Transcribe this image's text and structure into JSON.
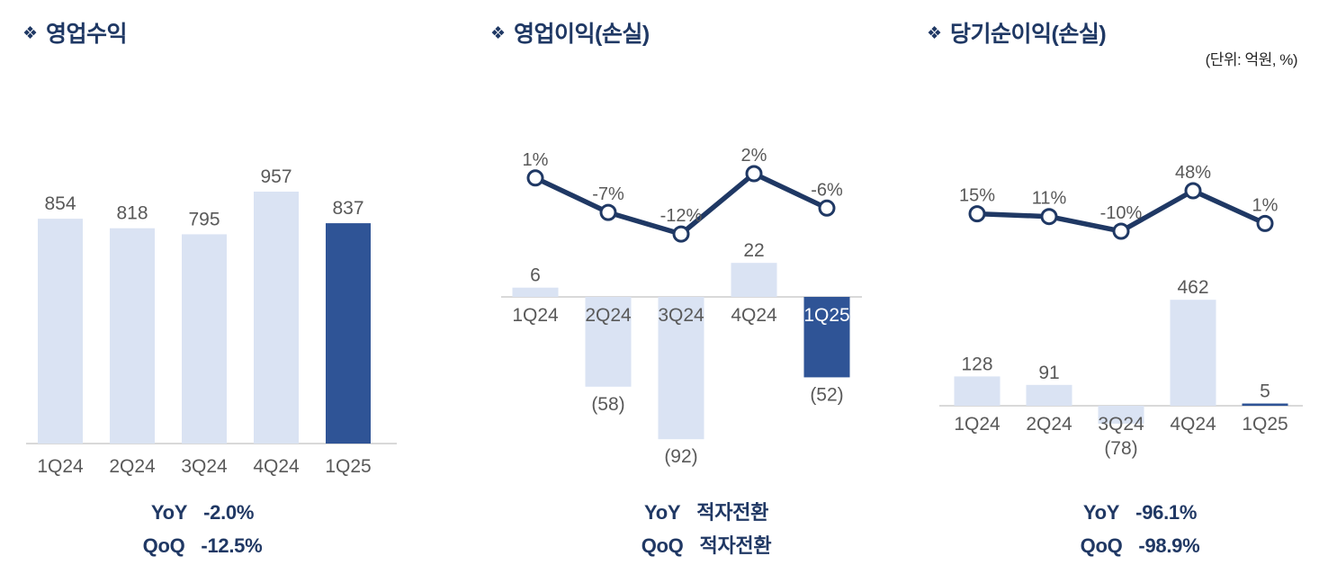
{
  "unit_label": "(단위: 억원, %)",
  "bullet_icon": "❖",
  "colors": {
    "title": "#1F3864",
    "bar_light": "#DAE3F3",
    "bar_dark": "#2F5496",
    "line": "#1F3864",
    "marker_fill": "#FFFFFF",
    "label_gray": "#595959",
    "axis": "#D9D9D9",
    "footer_text": "#203864",
    "category_on_dark": "#FFFFFF"
  },
  "chart_data": [
    {
      "id": "operating-revenue",
      "type": "bar",
      "title": "영업수익",
      "categories": [
        "1Q24",
        "2Q24",
        "3Q24",
        "4Q24",
        "1Q25"
      ],
      "highlight_index": 4,
      "ylim": [
        0,
        980
      ],
      "series": [
        {
          "name": "amount",
          "type": "bar",
          "values": [
            854,
            818,
            795,
            957,
            837
          ],
          "labels": [
            "854",
            "818",
            "795",
            "957",
            "837"
          ]
        }
      ],
      "footer": [
        {
          "label": "YoY",
          "value": "-2.0%"
        },
        {
          "label": "QoQ",
          "value": "-12.5%"
        }
      ]
    },
    {
      "id": "operating-profit-loss",
      "type": "bar+line",
      "title": "영업이익(손실)",
      "categories": [
        "1Q24",
        "2Q24",
        "3Q24",
        "4Q24",
        "1Q25"
      ],
      "highlight_index": 4,
      "series": [
        {
          "name": "amount",
          "type": "bar",
          "values": [
            6,
            -58,
            -92,
            22,
            -52
          ],
          "labels": [
            "6",
            "(58)",
            "(92)",
            "22",
            "(52)"
          ]
        },
        {
          "name": "growth-rate",
          "type": "line",
          "values": [
            1,
            -7,
            -12,
            2,
            -6
          ],
          "labels": [
            "1%",
            "-7%",
            "-12%",
            "2%",
            "-6%"
          ]
        }
      ],
      "footer": [
        {
          "label": "YoY",
          "value": "적자전환"
        },
        {
          "label": "QoQ",
          "value": "적자전환"
        }
      ]
    },
    {
      "id": "net-profit-loss",
      "type": "bar+line",
      "title": "당기순이익(손실)",
      "categories": [
        "1Q24",
        "2Q24",
        "3Q24",
        "4Q24",
        "1Q25"
      ],
      "highlight_index": 4,
      "series": [
        {
          "name": "amount",
          "type": "bar",
          "values": [
            128,
            91,
            -78,
            462,
            5
          ],
          "labels": [
            "128",
            "91",
            "(78)",
            "462",
            "5"
          ]
        },
        {
          "name": "growth-rate",
          "type": "line",
          "values": [
            15,
            11,
            -10,
            48,
            1
          ],
          "labels": [
            "15%",
            "11%",
            "-10%",
            "48%",
            "1%"
          ]
        }
      ],
      "footer": [
        {
          "label": "YoY",
          "value": "-96.1%"
        },
        {
          "label": "QoQ",
          "value": "-98.9%"
        }
      ]
    }
  ]
}
